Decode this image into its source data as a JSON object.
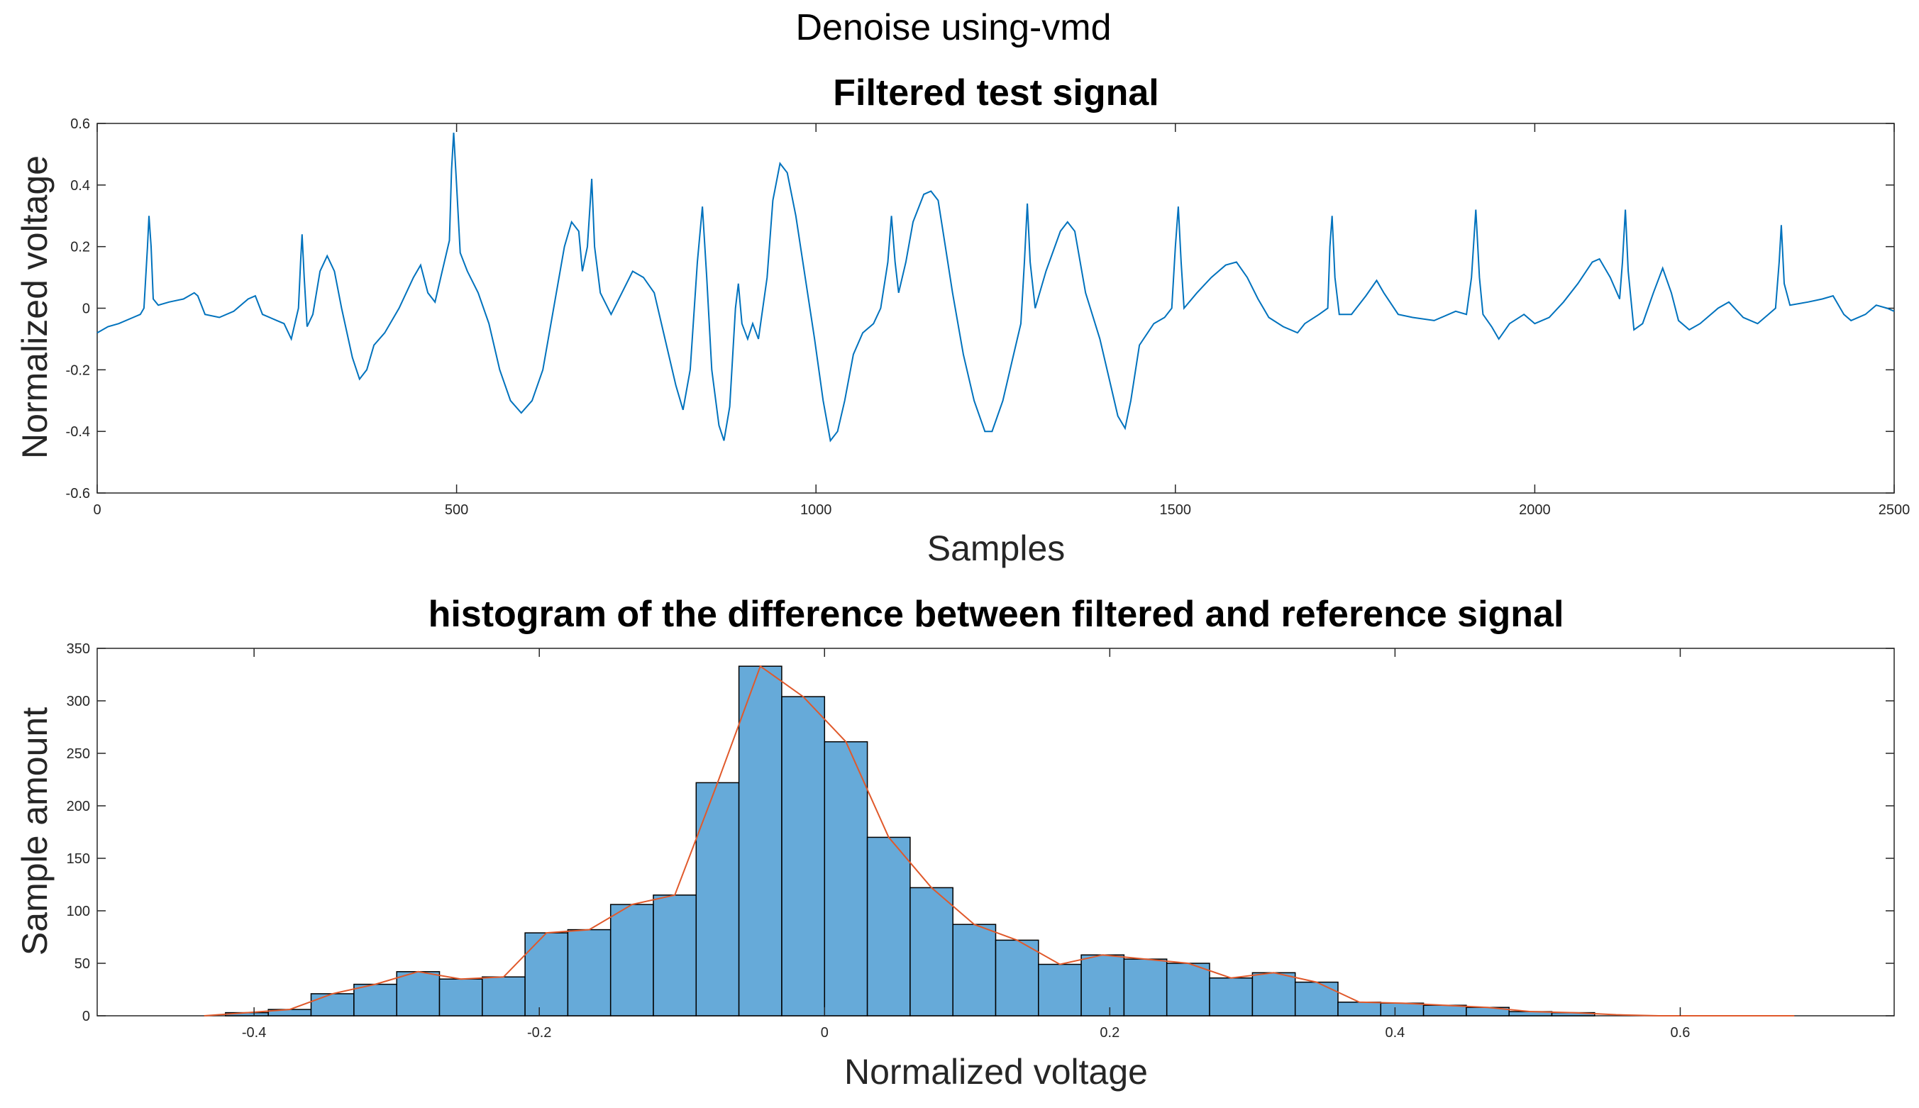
{
  "figure": {
    "suptitle": "Denoise using-vmd"
  },
  "chart_data": [
    {
      "type": "line",
      "title": "Filtered test signal",
      "xlabel": "Samples",
      "ylabel": "Normalized voltage",
      "xlim": [
        0,
        2500
      ],
      "ylim": [
        -0.6,
        0.6
      ],
      "xticks": [
        0,
        500,
        1000,
        1500,
        2000,
        2500
      ],
      "yticks": [
        -0.6,
        -0.4,
        -0.2,
        0,
        0.2,
        0.4,
        0.6
      ],
      "xtick_labels": [
        "0",
        "500",
        "1000",
        "1500",
        "2000",
        "2500"
      ],
      "ytick_labels": [
        "-0.6",
        "-0.4",
        "-0.2",
        "0",
        "0.2",
        "0.4",
        "0.6"
      ],
      "grid": false,
      "series": [
        {
          "color": "#0072bd",
          "points": [
            [
              0,
              -0.08
            ],
            [
              15,
              -0.06
            ],
            [
              30,
              -0.05
            ],
            [
              50,
              -0.03
            ],
            [
              60,
              -0.02
            ],
            [
              65,
              0.0
            ],
            [
              70,
              0.2
            ],
            [
              72,
              0.3
            ],
            [
              75,
              0.2
            ],
            [
              78,
              0.03
            ],
            [
              85,
              0.01
            ],
            [
              100,
              0.02
            ],
            [
              120,
              0.03
            ],
            [
              135,
              0.05
            ],
            [
              140,
              0.04
            ],
            [
              150,
              -0.02
            ],
            [
              170,
              -0.03
            ],
            [
              190,
              -0.01
            ],
            [
              210,
              0.03
            ],
            [
              220,
              0.04
            ],
            [
              230,
              -0.02
            ],
            [
              250,
              -0.04
            ],
            [
              260,
              -0.05
            ],
            [
              270,
              -0.1
            ],
            [
              280,
              0.0
            ],
            [
              283,
              0.15
            ],
            [
              285,
              0.24
            ],
            [
              288,
              0.1
            ],
            [
              292,
              -0.06
            ],
            [
              300,
              -0.02
            ],
            [
              310,
              0.12
            ],
            [
              320,
              0.17
            ],
            [
              330,
              0.12
            ],
            [
              340,
              0.0
            ],
            [
              355,
              -0.16
            ],
            [
              365,
              -0.23
            ],
            [
              375,
              -0.2
            ],
            [
              385,
              -0.12
            ],
            [
              400,
              -0.08
            ],
            [
              420,
              0.0
            ],
            [
              440,
              0.1
            ],
            [
              450,
              0.14
            ],
            [
              460,
              0.05
            ],
            [
              470,
              0.02
            ],
            [
              480,
              0.12
            ],
            [
              490,
              0.22
            ],
            [
              493,
              0.45
            ],
            [
              496,
              0.57
            ],
            [
              500,
              0.4
            ],
            [
              505,
              0.18
            ],
            [
              515,
              0.12
            ],
            [
              530,
              0.05
            ],
            [
              545,
              -0.05
            ],
            [
              560,
              -0.2
            ],
            [
              575,
              -0.3
            ],
            [
              590,
              -0.34
            ],
            [
              605,
              -0.3
            ],
            [
              620,
              -0.2
            ],
            [
              635,
              0.0
            ],
            [
              650,
              0.2
            ],
            [
              660,
              0.28
            ],
            [
              670,
              0.25
            ],
            [
              675,
              0.12
            ],
            [
              682,
              0.2
            ],
            [
              688,
              0.42
            ],
            [
              692,
              0.2
            ],
            [
              700,
              0.05
            ],
            [
              715,
              -0.02
            ],
            [
              730,
              0.05
            ],
            [
              745,
              0.12
            ],
            [
              760,
              0.1
            ],
            [
              775,
              0.05
            ],
            [
              790,
              -0.1
            ],
            [
              805,
              -0.25
            ],
            [
              815,
              -0.33
            ],
            [
              825,
              -0.2
            ],
            [
              835,
              0.15
            ],
            [
              842,
              0.33
            ],
            [
              848,
              0.1
            ],
            [
              855,
              -0.2
            ],
            [
              865,
              -0.38
            ],
            [
              872,
              -0.43
            ],
            [
              880,
              -0.32
            ],
            [
              888,
              0.0
            ],
            [
              892,
              0.08
            ],
            [
              897,
              -0.05
            ],
            [
              905,
              -0.1
            ],
            [
              912,
              -0.05
            ],
            [
              920,
              -0.1
            ],
            [
              932,
              0.1
            ],
            [
              940,
              0.35
            ],
            [
              950,
              0.47
            ],
            [
              960,
              0.44
            ],
            [
              972,
              0.3
            ],
            [
              985,
              0.1
            ],
            [
              998,
              -0.1
            ],
            [
              1010,
              -0.3
            ],
            [
              1020,
              -0.43
            ],
            [
              1030,
              -0.4
            ],
            [
              1040,
              -0.3
            ],
            [
              1052,
              -0.15
            ],
            [
              1065,
              -0.08
            ],
            [
              1080,
              -0.05
            ],
            [
              1090,
              0.0
            ],
            [
              1100,
              0.15
            ],
            [
              1105,
              0.3
            ],
            [
              1110,
              0.15
            ],
            [
              1115,
              0.05
            ],
            [
              1125,
              0.15
            ],
            [
              1135,
              0.28
            ],
            [
              1150,
              0.37
            ],
            [
              1160,
              0.38
            ],
            [
              1170,
              0.35
            ],
            [
              1180,
              0.2
            ],
            [
              1190,
              0.05
            ],
            [
              1205,
              -0.15
            ],
            [
              1220,
              -0.3
            ],
            [
              1235,
              -0.4
            ],
            [
              1245,
              -0.4
            ],
            [
              1260,
              -0.3
            ],
            [
              1275,
              -0.15
            ],
            [
              1285,
              -0.05
            ],
            [
              1290,
              0.15
            ],
            [
              1294,
              0.34
            ],
            [
              1298,
              0.15
            ],
            [
              1305,
              0.0
            ],
            [
              1320,
              0.12
            ],
            [
              1340,
              0.25
            ],
            [
              1350,
              0.28
            ],
            [
              1360,
              0.25
            ],
            [
              1375,
              0.05
            ],
            [
              1395,
              -0.1
            ],
            [
              1410,
              -0.25
            ],
            [
              1420,
              -0.35
            ],
            [
              1430,
              -0.39
            ],
            [
              1438,
              -0.3
            ],
            [
              1450,
              -0.12
            ],
            [
              1470,
              -0.05
            ],
            [
              1485,
              -0.03
            ],
            [
              1495,
              0.0
            ],
            [
              1500,
              0.2
            ],
            [
              1504,
              0.33
            ],
            [
              1508,
              0.15
            ],
            [
              1512,
              0.0
            ],
            [
              1530,
              0.05
            ],
            [
              1550,
              0.1
            ],
            [
              1570,
              0.14
            ],
            [
              1585,
              0.15
            ],
            [
              1600,
              0.1
            ],
            [
              1615,
              0.03
            ],
            [
              1630,
              -0.03
            ],
            [
              1650,
              -0.06
            ],
            [
              1670,
              -0.08
            ],
            [
              1680,
              -0.05
            ],
            [
              1700,
              -0.02
            ],
            [
              1712,
              0.0
            ],
            [
              1715,
              0.2
            ],
            [
              1718,
              0.3
            ],
            [
              1722,
              0.1
            ],
            [
              1728,
              -0.02
            ],
            [
              1745,
              -0.02
            ],
            [
              1765,
              0.04
            ],
            [
              1780,
              0.09
            ],
            [
              1790,
              0.05
            ],
            [
              1810,
              -0.02
            ],
            [
              1830,
              -0.03
            ],
            [
              1860,
              -0.04
            ],
            [
              1890,
              -0.01
            ],
            [
              1905,
              -0.02
            ],
            [
              1912,
              0.1
            ],
            [
              1918,
              0.32
            ],
            [
              1923,
              0.1
            ],
            [
              1928,
              -0.02
            ],
            [
              1940,
              -0.06
            ],
            [
              1950,
              -0.1
            ],
            [
              1965,
              -0.05
            ],
            [
              1985,
              -0.02
            ],
            [
              2000,
              -0.05
            ],
            [
              2020,
              -0.03
            ],
            [
              2040,
              0.02
            ],
            [
              2060,
              0.08
            ],
            [
              2080,
              0.15
            ],
            [
              2090,
              0.16
            ],
            [
              2105,
              0.1
            ],
            [
              2118,
              0.03
            ],
            [
              2122,
              0.15
            ],
            [
              2126,
              0.32
            ],
            [
              2130,
              0.12
            ],
            [
              2138,
              -0.07
            ],
            [
              2150,
              -0.05
            ],
            [
              2165,
              0.05
            ],
            [
              2178,
              0.13
            ],
            [
              2190,
              0.05
            ],
            [
              2200,
              -0.04
            ],
            [
              2215,
              -0.07
            ],
            [
              2230,
              -0.05
            ],
            [
              2255,
              0.0
            ],
            [
              2270,
              0.02
            ],
            [
              2290,
              -0.03
            ],
            [
              2310,
              -0.05
            ],
            [
              2325,
              -0.02
            ],
            [
              2335,
              0.0
            ],
            [
              2340,
              0.15
            ],
            [
              2343,
              0.27
            ],
            [
              2347,
              0.08
            ],
            [
              2355,
              0.01
            ],
            [
              2380,
              0.02
            ],
            [
              2400,
              0.03
            ],
            [
              2415,
              0.04
            ],
            [
              2430,
              -0.02
            ],
            [
              2440,
              -0.04
            ],
            [
              2460,
              -0.02
            ],
            [
              2475,
              0.01
            ],
            [
              2490,
              0.0
            ],
            [
              2500,
              -0.01
            ]
          ]
        }
      ]
    },
    {
      "type": "bar",
      "subtype": "histogram",
      "title": "histogram of the difference between filtered and reference signal",
      "xlabel": "Normalized voltage",
      "ylabel": "Sample amount",
      "xlim": [
        -0.51,
        0.75
      ],
      "ylim": [
        0,
        350
      ],
      "xticks": [
        -0.4,
        -0.2,
        0,
        0.2,
        0.4,
        0.6
      ],
      "yticks": [
        0,
        50,
        100,
        150,
        200,
        250,
        300,
        350
      ],
      "xtick_labels": [
        "-0.4",
        "-0.2",
        "0",
        "0.2",
        "0.4",
        "0.6"
      ],
      "ytick_labels": [
        "0",
        "50",
        "100",
        "150",
        "200",
        "250",
        "300",
        "350"
      ],
      "grid": false,
      "bin_width": 0.03,
      "bin_start": -0.42,
      "values": [
        3,
        6,
        21,
        30,
        42,
        35,
        37,
        79,
        82,
        106,
        115,
        222,
        333,
        304,
        261,
        170,
        122,
        87,
        72,
        49,
        58,
        54,
        50,
        36,
        41,
        32,
        13,
        12,
        10,
        8,
        4,
        3
      ],
      "bar_color": "#66aad9",
      "bar_edge_color": "#000000",
      "overlay": {
        "color": "#e0592b",
        "points": [
          [
            -0.435,
            0
          ],
          [
            -0.405,
            3
          ],
          [
            -0.375,
            6
          ],
          [
            -0.345,
            21
          ],
          [
            -0.315,
            30
          ],
          [
            -0.285,
            42
          ],
          [
            -0.255,
            35
          ],
          [
            -0.225,
            37
          ],
          [
            -0.195,
            79
          ],
          [
            -0.165,
            82
          ],
          [
            -0.135,
            106
          ],
          [
            -0.105,
            115
          ],
          [
            -0.075,
            222
          ],
          [
            -0.045,
            333
          ],
          [
            -0.015,
            304
          ],
          [
            0.015,
            261
          ],
          [
            0.045,
            170
          ],
          [
            0.075,
            122
          ],
          [
            0.105,
            87
          ],
          [
            0.135,
            72
          ],
          [
            0.165,
            49
          ],
          [
            0.195,
            58
          ],
          [
            0.225,
            54
          ],
          [
            0.255,
            50
          ],
          [
            0.285,
            36
          ],
          [
            0.315,
            41
          ],
          [
            0.345,
            32
          ],
          [
            0.375,
            13
          ],
          [
            0.405,
            12
          ],
          [
            0.435,
            10
          ],
          [
            0.465,
            8
          ],
          [
            0.495,
            4
          ],
          [
            0.525,
            3
          ],
          [
            0.555,
            1
          ],
          [
            0.585,
            0
          ],
          [
            0.62,
            0
          ],
          [
            0.66,
            0
          ],
          [
            0.68,
            0
          ]
        ]
      }
    }
  ]
}
